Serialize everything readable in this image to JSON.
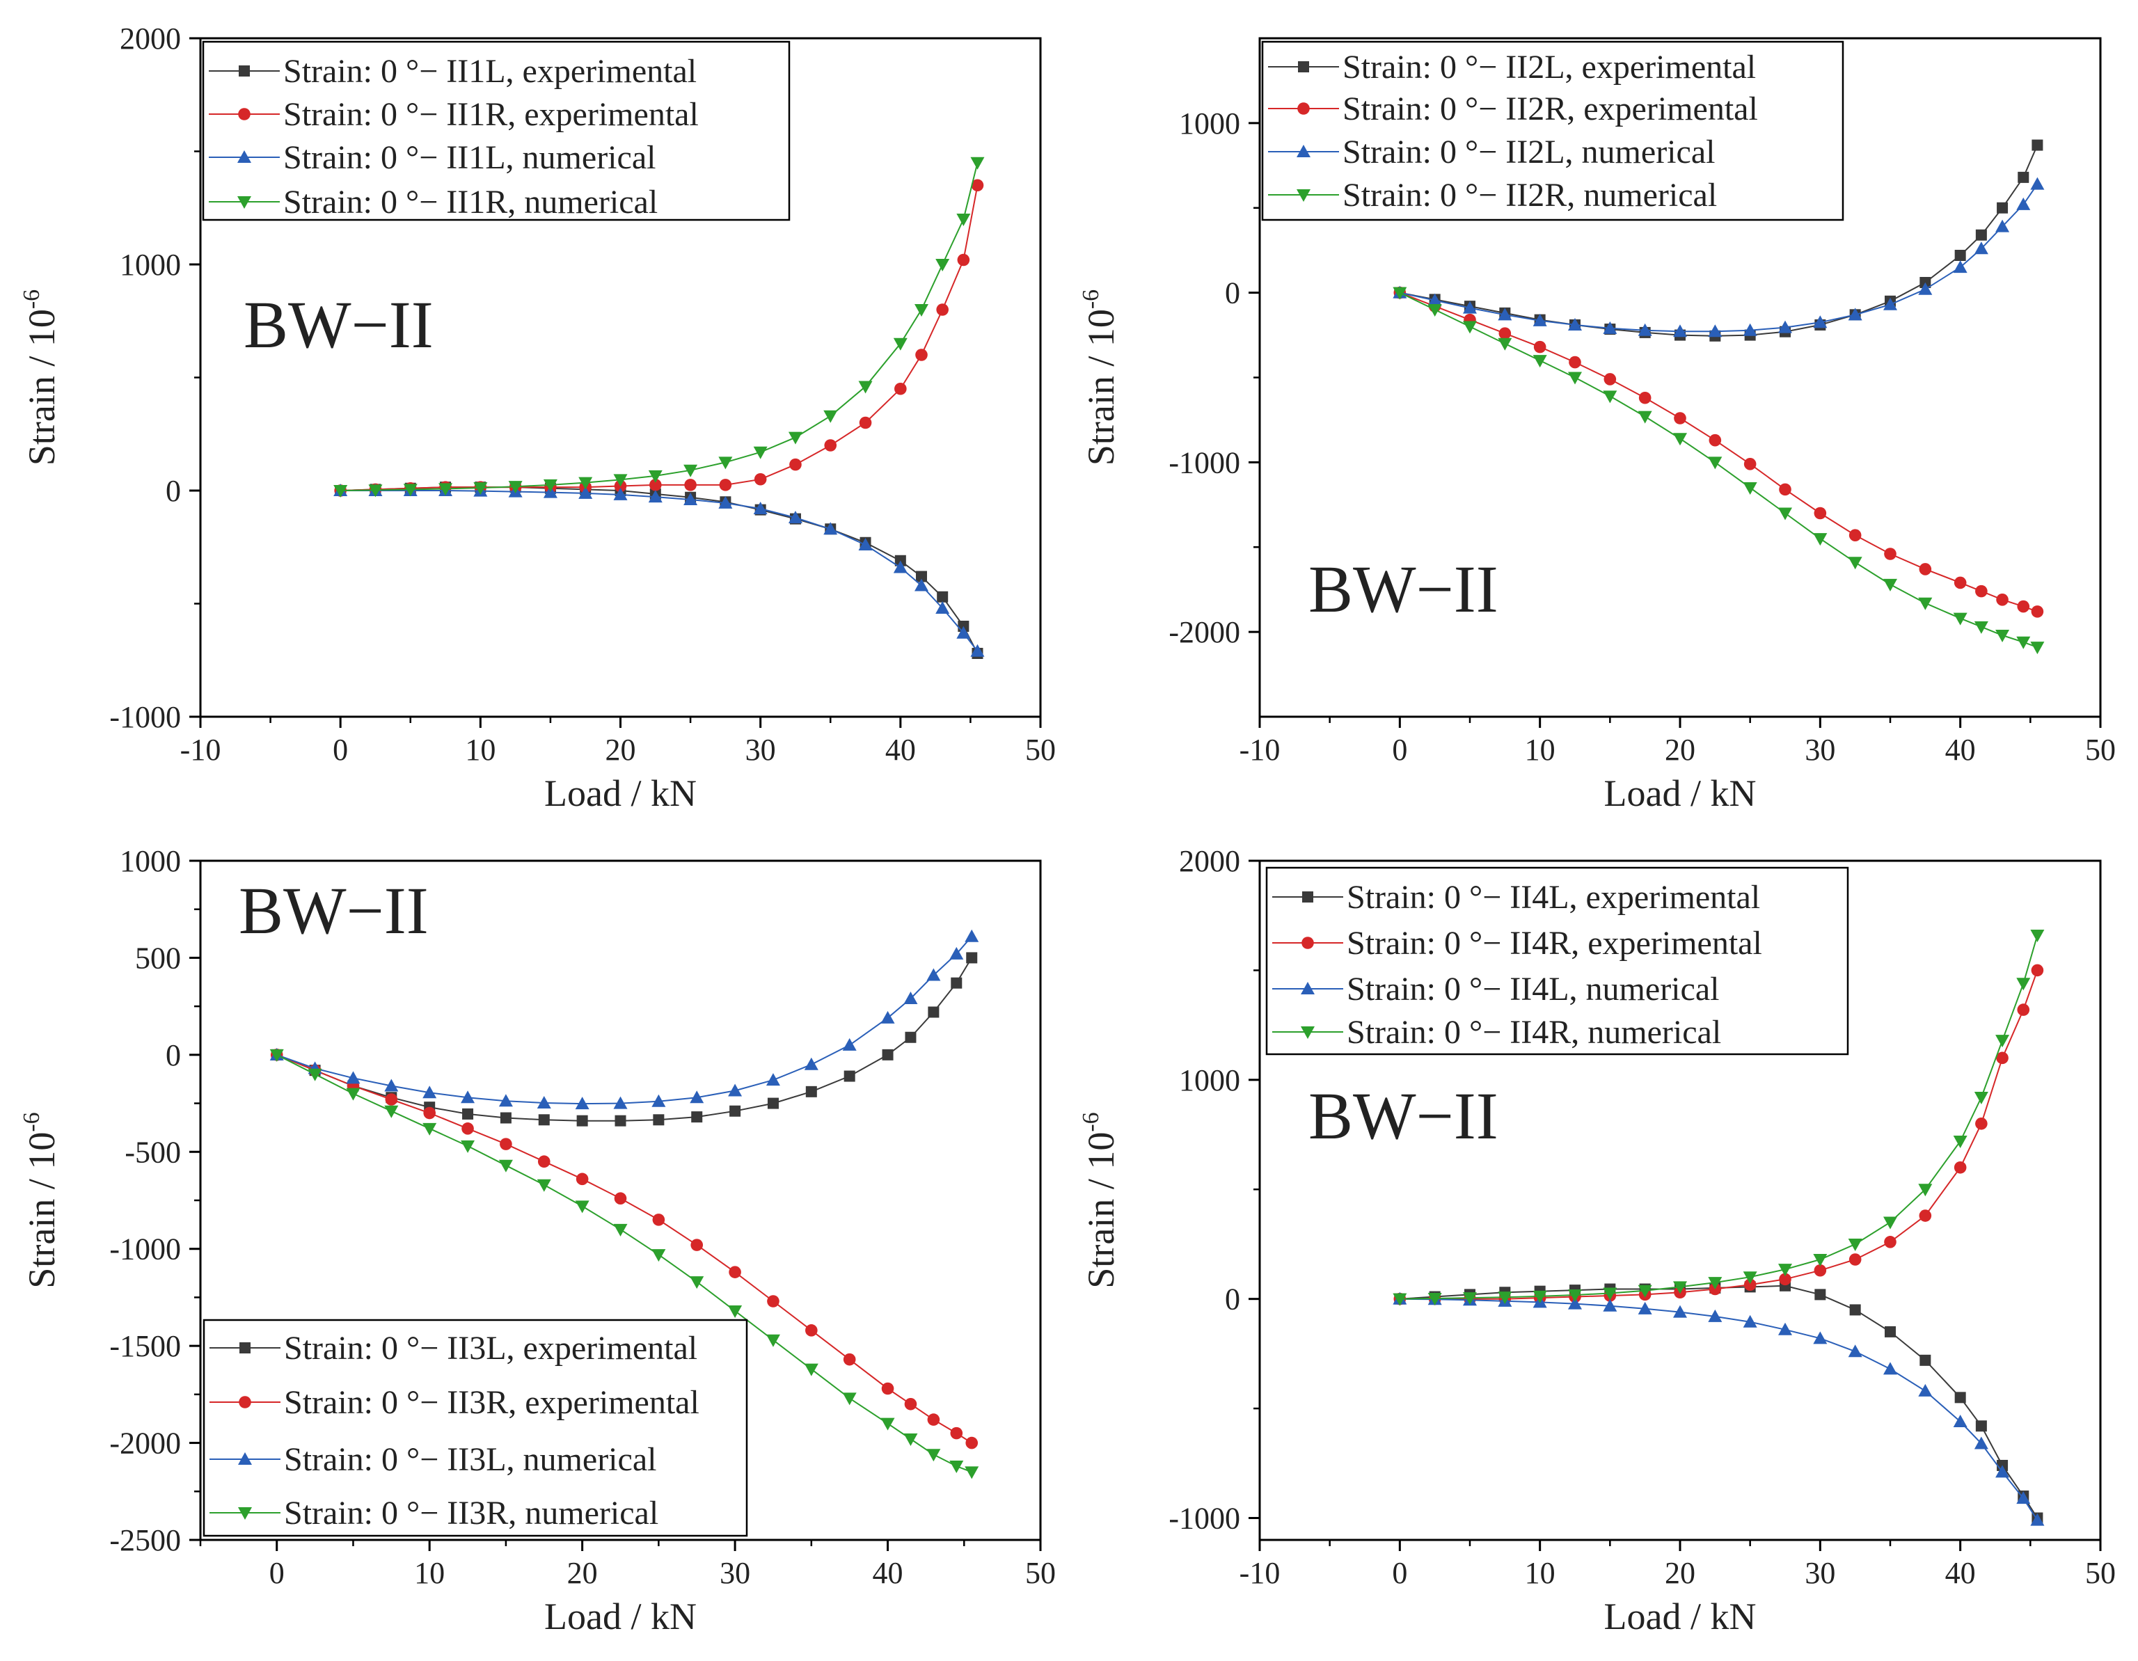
{
  "figure_label": "BW−II",
  "colors": {
    "experimental_L": "#3a3a3a",
    "experimental_R": "#d62728",
    "numerical_L": "#2a5fb8",
    "numerical_R": "#2ca02c"
  },
  "chart_data": [
    {
      "type": "line",
      "title": "",
      "panel_label": "BW−II",
      "xlabel": "Load / kN",
      "ylabel": "Strain / 10",
      "ylabel_exp": "-6",
      "xlim": [
        -10,
        50
      ],
      "ylim": [
        -1000,
        2000
      ],
      "xticks": [
        -10,
        0,
        10,
        20,
        30,
        40,
        50
      ],
      "yticks": [
        -1000,
        0,
        1000,
        2000
      ],
      "xtick_labels": [
        "-10",
        "0",
        "10",
        "20",
        "30",
        "40",
        "50"
      ],
      "ytick_labels": [
        "-1000",
        "0",
        "1000",
        "2000"
      ],
      "legend_position": "top-left",
      "series": [
        {
          "name": "Strain: 0 °− II1L, experimental",
          "key": "experimental_L",
          "marker": "square",
          "x": [
            0,
            2.5,
            5,
            7.5,
            10,
            12.5,
            15,
            17.5,
            20,
            22.5,
            25,
            27.5,
            30,
            32.5,
            35,
            37.5,
            40,
            41.5,
            43,
            44.5,
            45.5
          ],
          "y": [
            0,
            5,
            10,
            15,
            15,
            15,
            10,
            5,
            0,
            -15,
            -30,
            -50,
            -85,
            -125,
            -170,
            -230,
            -310,
            -380,
            -470,
            -600,
            -720
          ]
        },
        {
          "name": "Strain: 0 °− II1R, experimental",
          "key": "experimental_R",
          "marker": "circle",
          "x": [
            0,
            2.5,
            5,
            7.5,
            10,
            12.5,
            15,
            17.5,
            20,
            22.5,
            25,
            27.5,
            30,
            32.5,
            35,
            37.5,
            40,
            41.5,
            43,
            44.5,
            45.5
          ],
          "y": [
            0,
            5,
            10,
            15,
            15,
            15,
            15,
            15,
            20,
            25,
            25,
            25,
            50,
            115,
            200,
            300,
            450,
            600,
            800,
            1020,
            1350
          ]
        },
        {
          "name": "Strain: 0 °− II1L, numerical",
          "key": "numerical_L",
          "marker": "triangle-up",
          "x": [
            0,
            2.5,
            5,
            7.5,
            10,
            12.5,
            15,
            17.5,
            20,
            22.5,
            25,
            27.5,
            30,
            32.5,
            35,
            37.5,
            40,
            41.5,
            43,
            44.5,
            45.5
          ],
          "y": [
            0,
            0,
            0,
            0,
            -2,
            -5,
            -8,
            -12,
            -18,
            -28,
            -40,
            -55,
            -80,
            -120,
            -170,
            -240,
            -340,
            -420,
            -520,
            -630,
            -710
          ]
        },
        {
          "name": "Strain: 0 °− II1R, numerical",
          "key": "numerical_R",
          "marker": "triangle-down",
          "x": [
            0,
            2.5,
            5,
            7.5,
            10,
            12.5,
            15,
            17.5,
            20,
            22.5,
            25,
            27.5,
            30,
            32.5,
            35,
            37.5,
            40,
            41.5,
            43,
            44.5,
            45.5
          ],
          "y": [
            0,
            2,
            5,
            8,
            12,
            18,
            25,
            35,
            48,
            65,
            90,
            125,
            170,
            235,
            330,
            460,
            650,
            800,
            1000,
            1200,
            1450
          ]
        }
      ]
    },
    {
      "type": "line",
      "title": "",
      "panel_label": "BW−II",
      "xlabel": "Load / kN",
      "ylabel": "Strain / 10",
      "ylabel_exp": "-6",
      "xlim": [
        -10,
        50
      ],
      "ylim": [
        -2500,
        1500
      ],
      "xticks": [
        -10,
        0,
        10,
        20,
        30,
        40,
        50
      ],
      "yticks": [
        -2000,
        -1000,
        0,
        1000
      ],
      "xtick_labels": [
        "-10",
        "0",
        "10",
        "20",
        "30",
        "40",
        "50"
      ],
      "ytick_labels": [
        "-2000",
        "-1000",
        "0",
        "1000"
      ],
      "legend_position": "top-left",
      "series": [
        {
          "name": "Strain: 0 °− II2L, experimental",
          "key": "experimental_L",
          "marker": "square",
          "x": [
            0,
            2.5,
            5,
            7.5,
            10,
            12.5,
            15,
            17.5,
            20,
            22.5,
            25,
            27.5,
            30,
            32.5,
            35,
            37.5,
            40,
            41.5,
            43,
            44.5,
            45.5
          ],
          "y": [
            0,
            -40,
            -80,
            -120,
            -160,
            -190,
            -215,
            -235,
            -250,
            -255,
            -250,
            -230,
            -190,
            -130,
            -50,
            60,
            220,
            340,
            500,
            680,
            870
          ]
        },
        {
          "name": "Strain: 0 °− II2R, experimental",
          "key": "experimental_R",
          "marker": "circle",
          "x": [
            0,
            2.5,
            5,
            7.5,
            10,
            12.5,
            15,
            17.5,
            20,
            22.5,
            25,
            27.5,
            30,
            32.5,
            35,
            37.5,
            40,
            41.5,
            43,
            44.5,
            45.5
          ],
          "y": [
            0,
            -80,
            -160,
            -240,
            -320,
            -410,
            -510,
            -620,
            -740,
            -870,
            -1010,
            -1160,
            -1300,
            -1430,
            -1540,
            -1630,
            -1710,
            -1760,
            -1810,
            -1850,
            -1880
          ]
        },
        {
          "name": "Strain: 0 °− II2L, numerical",
          "key": "numerical_L",
          "marker": "triangle-up",
          "x": [
            0,
            2.5,
            5,
            7.5,
            10,
            12.5,
            15,
            17.5,
            20,
            22.5,
            25,
            27.5,
            30,
            32.5,
            35,
            37.5,
            40,
            41.5,
            43,
            44.5,
            45.5
          ],
          "y": [
            0,
            -45,
            -90,
            -130,
            -165,
            -190,
            -210,
            -222,
            -228,
            -228,
            -222,
            -205,
            -175,
            -130,
            -70,
            20,
            150,
            260,
            390,
            520,
            640
          ]
        },
        {
          "name": "Strain: 0 °− II2R, numerical",
          "key": "numerical_R",
          "marker": "triangle-down",
          "x": [
            0,
            2.5,
            5,
            7.5,
            10,
            12.5,
            15,
            17.5,
            20,
            22.5,
            25,
            27.5,
            30,
            32.5,
            35,
            37.5,
            40,
            41.5,
            43,
            44.5,
            45.5
          ],
          "y": [
            0,
            -100,
            -200,
            -300,
            -400,
            -500,
            -610,
            -730,
            -860,
            -1000,
            -1150,
            -1300,
            -1450,
            -1590,
            -1720,
            -1830,
            -1920,
            -1970,
            -2020,
            -2060,
            -2090
          ]
        }
      ]
    },
    {
      "type": "line",
      "title": "",
      "panel_label": "BW−II",
      "xlabel": "Load / kN",
      "ylabel": "Strain / 10",
      "ylabel_exp": "-6",
      "xlim": [
        -5,
        50
      ],
      "ylim": [
        -2500,
        1000
      ],
      "xticks": [
        0,
        10,
        20,
        30,
        40,
        50
      ],
      "yticks": [
        -2500,
        -2000,
        -1500,
        -1000,
        -500,
        0,
        500,
        1000
      ],
      "xtick_labels": [
        "0",
        "10",
        "20",
        "30",
        "40",
        "50"
      ],
      "ytick_labels": [
        "-2500",
        "-2000",
        "-1500",
        "-1000",
        "-500",
        "0",
        "500",
        "1000"
      ],
      "legend_position": "bottom-left",
      "series": [
        {
          "name": "Strain: 0 °− II3L, experimental",
          "key": "experimental_L",
          "marker": "square",
          "x": [
            0,
            2.5,
            5,
            7.5,
            10,
            12.5,
            15,
            17.5,
            20,
            22.5,
            25,
            27.5,
            30,
            32.5,
            35,
            37.5,
            40,
            41.5,
            43,
            44.5,
            45.5
          ],
          "y": [
            0,
            -80,
            -160,
            -220,
            -270,
            -305,
            -325,
            -335,
            -340,
            -340,
            -335,
            -320,
            -290,
            -250,
            -190,
            -110,
            0,
            90,
            220,
            370,
            500
          ]
        },
        {
          "name": "Strain: 0 °− II3R, experimental",
          "key": "experimental_R",
          "marker": "circle",
          "x": [
            0,
            2.5,
            5,
            7.5,
            10,
            12.5,
            15,
            17.5,
            20,
            22.5,
            25,
            27.5,
            30,
            32.5,
            35,
            37.5,
            40,
            41.5,
            43,
            44.5,
            45.5
          ],
          "y": [
            0,
            -80,
            -160,
            -230,
            -300,
            -380,
            -460,
            -550,
            -640,
            -740,
            -850,
            -980,
            -1120,
            -1270,
            -1420,
            -1570,
            -1720,
            -1800,
            -1880,
            -1950,
            -2000
          ]
        },
        {
          "name": "Strain: 0 °− II3L, numerical",
          "key": "numerical_L",
          "marker": "triangle-up",
          "x": [
            0,
            2.5,
            5,
            7.5,
            10,
            12.5,
            15,
            17.5,
            20,
            22.5,
            25,
            27.5,
            30,
            32.5,
            35,
            37.5,
            40,
            41.5,
            43,
            44.5,
            45.5
          ],
          "y": [
            0,
            -70,
            -120,
            -160,
            -195,
            -220,
            -238,
            -248,
            -252,
            -250,
            -240,
            -220,
            -185,
            -130,
            -50,
            50,
            190,
            290,
            410,
            520,
            610
          ]
        },
        {
          "name": "Strain: 0 °− II3R, numerical",
          "key": "numerical_R",
          "marker": "triangle-down",
          "x": [
            0,
            2.5,
            5,
            7.5,
            10,
            12.5,
            15,
            17.5,
            20,
            22.5,
            25,
            27.5,
            30,
            32.5,
            35,
            37.5,
            40,
            41.5,
            43,
            44.5,
            45.5
          ],
          "y": [
            0,
            -100,
            -200,
            -290,
            -380,
            -470,
            -570,
            -670,
            -780,
            -900,
            -1030,
            -1170,
            -1320,
            -1470,
            -1620,
            -1770,
            -1900,
            -1980,
            -2060,
            -2120,
            -2150
          ]
        }
      ]
    },
    {
      "type": "line",
      "title": "",
      "panel_label": "BW−II",
      "xlabel": "Load / kN",
      "ylabel": "Strain / 10",
      "ylabel_exp": "-6",
      "xlim": [
        -10,
        50
      ],
      "ylim": [
        -1100,
        2000
      ],
      "xticks": [
        -10,
        0,
        10,
        20,
        30,
        40,
        50
      ],
      "yticks": [
        -1000,
        0,
        1000,
        2000
      ],
      "xtick_labels": [
        "-10",
        "0",
        "10",
        "20",
        "30",
        "40",
        "50"
      ],
      "ytick_labels": [
        "-1000",
        "0",
        "1000",
        "2000"
      ],
      "legend_position": "top-left",
      "series": [
        {
          "name": "Strain: 0 °− II4L, experimental",
          "key": "experimental_L",
          "marker": "square",
          "x": [
            0,
            2.5,
            5,
            7.5,
            10,
            12.5,
            15,
            17.5,
            20,
            22.5,
            25,
            27.5,
            30,
            32.5,
            35,
            37.5,
            40,
            41.5,
            43,
            44.5,
            45.5
          ],
          "y": [
            0,
            10,
            20,
            30,
            35,
            40,
            45,
            45,
            45,
            50,
            55,
            60,
            20,
            -50,
            -150,
            -280,
            -450,
            -580,
            -760,
            -900,
            -1000
          ]
        },
        {
          "name": "Strain: 0 °− II4R, experimental",
          "key": "experimental_R",
          "marker": "circle",
          "x": [
            0,
            2.5,
            5,
            7.5,
            10,
            12.5,
            15,
            17.5,
            20,
            22.5,
            25,
            27.5,
            30,
            32.5,
            35,
            37.5,
            40,
            41.5,
            43,
            44.5,
            45.5
          ],
          "y": [
            0,
            0,
            0,
            0,
            5,
            10,
            15,
            20,
            30,
            45,
            65,
            90,
            130,
            180,
            260,
            380,
            600,
            800,
            1100,
            1320,
            1500
          ]
        },
        {
          "name": "Strain: 0 °− II4L, numerical",
          "key": "numerical_L",
          "marker": "triangle-up",
          "x": [
            0,
            2.5,
            5,
            7.5,
            10,
            12.5,
            15,
            17.5,
            20,
            22.5,
            25,
            27.5,
            30,
            32.5,
            35,
            37.5,
            40,
            41.5,
            43,
            44.5,
            45.5
          ],
          "y": [
            0,
            -2,
            -5,
            -10,
            -15,
            -22,
            -32,
            -45,
            -60,
            -80,
            -105,
            -140,
            -180,
            -240,
            -320,
            -420,
            -560,
            -660,
            -790,
            -910,
            -1010
          ]
        },
        {
          "name": "Strain: 0 °− II4R, numerical",
          "key": "numerical_R",
          "marker": "triangle-down",
          "x": [
            0,
            2.5,
            5,
            7.5,
            10,
            12.5,
            15,
            17.5,
            20,
            22.5,
            25,
            27.5,
            30,
            32.5,
            35,
            37.5,
            40,
            41.5,
            43,
            44.5,
            45.5
          ],
          "y": [
            0,
            2,
            5,
            8,
            12,
            18,
            26,
            38,
            55,
            75,
            100,
            135,
            180,
            250,
            350,
            500,
            720,
            920,
            1180,
            1440,
            1660
          ]
        }
      ]
    }
  ]
}
